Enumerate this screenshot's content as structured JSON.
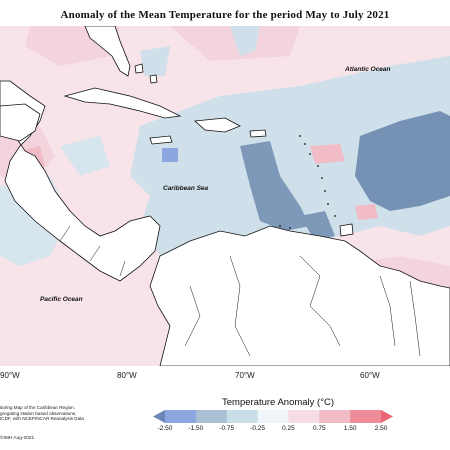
{
  "title": "Anomaly of the Mean Temperature for the period May to July 2021",
  "labels": {
    "atlantic": "Atlantic Ocean",
    "caribbean": "Caribbean Sea",
    "pacific": "Pacific Ocean"
  },
  "longitudes": [
    "90°W",
    "80°W",
    "70°W",
    "60°W"
  ],
  "legend": {
    "title": "Temperature Anomaly (°C)",
    "ticks": [
      "-2.50",
      "-1.50",
      "-0.75",
      "-0.25",
      "0.25",
      "0.75",
      "1.50",
      "2.50"
    ],
    "colors": [
      "#6a87b8",
      "#8ea6e0",
      "#a9bfd3",
      "#c9dde7",
      "#eef4f7",
      "#f6dde3",
      "#f1bcc6",
      "#ee8c99",
      "#ea6575"
    ]
  },
  "footnote": {
    "line1": "itoring Map of the Caribbean Region.",
    "line2": "gregating station based observations,",
    "line3": "ICDF, with NCEP/NCAR Reanalysis Data",
    "copyright": "©IMH Aug-2021"
  }
}
